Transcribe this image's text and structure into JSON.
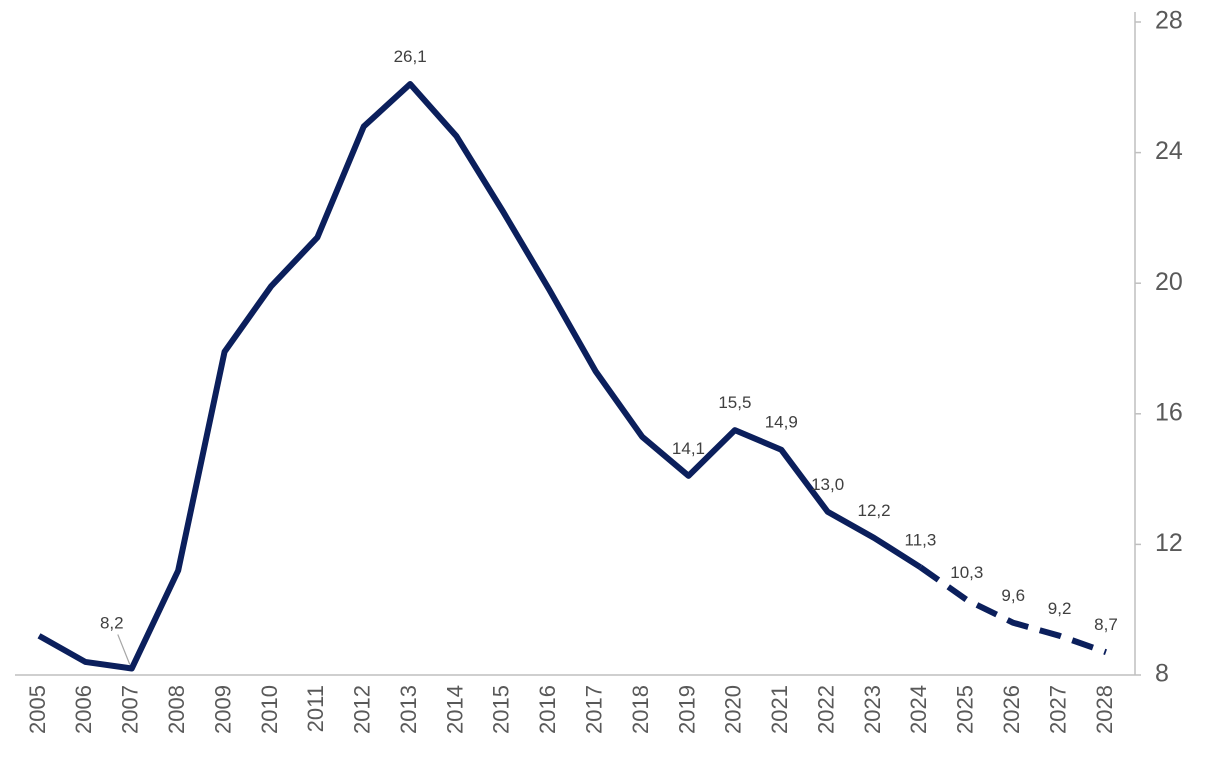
{
  "chart_data": {
    "type": "line",
    "categories": [
      "2005",
      "2006",
      "2007",
      "2008",
      "2009",
      "2010",
      "2011",
      "2012",
      "2013",
      "2014",
      "2015",
      "2016",
      "2017",
      "2018",
      "2019",
      "2020",
      "2021",
      "2022",
      "2023",
      "2024",
      "2025",
      "2026",
      "2027",
      "2028"
    ],
    "series": [
      {
        "color": "#0b1f5c",
        "values": [
          9.2,
          8.4,
          8.2,
          11.2,
          17.9,
          19.9,
          21.4,
          24.8,
          26.1,
          24.5,
          22.2,
          19.8,
          17.3,
          15.3,
          14.1,
          15.5,
          14.9,
          13.0,
          12.2,
          11.3,
          10.3,
          9.6,
          9.2,
          8.7
        ],
        "value_labels": [
          null,
          null,
          "8,2",
          null,
          null,
          null,
          null,
          null,
          "26,1",
          null,
          null,
          null,
          null,
          null,
          "14,1",
          "15,5",
          "14,9",
          "13,0",
          "12,2",
          "11,3",
          "10,3",
          "9,6",
          "9,2",
          "8,7"
        ]
      }
    ],
    "dashed_from": "2024",
    "ylim": [
      8,
      28
    ],
    "yticks": [
      8,
      12,
      16,
      20,
      24,
      28
    ],
    "y_axis_side": "right"
  }
}
